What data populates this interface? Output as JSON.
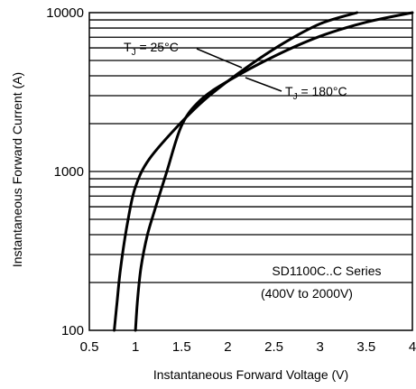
{
  "chart_data": {
    "type": "line",
    "title": "",
    "xlabel": "Instantaneous Forward Voltage (V)",
    "ylabel": "Instantaneous Forward Current (A)",
    "xlim": [
      0.5,
      4
    ],
    "ylim": [
      100,
      10000
    ],
    "y_scale": "log",
    "grid": "horizontal",
    "x_ticks": [
      "0.5",
      "1",
      "1.5",
      "2",
      "2.5",
      "3",
      "3.5",
      "4"
    ],
    "y_ticks": [
      "100",
      "1000",
      "10000"
    ],
    "series": [
      {
        "name": "TJ = 25°C",
        "label_main": "T",
        "label_sub": "J",
        "label_rest": " = 25°C",
        "points": [
          [
            1.0,
            100
          ],
          [
            1.02,
            150
          ],
          [
            1.06,
            250
          ],
          [
            1.13,
            400
          ],
          [
            1.22,
            600
          ],
          [
            1.34,
            1000
          ],
          [
            1.5,
            1950
          ],
          [
            1.7,
            2800
          ],
          [
            2.0,
            3700
          ],
          [
            2.5,
            5300
          ],
          [
            3.0,
            7100
          ],
          [
            3.5,
            8700
          ],
          [
            4.0,
            10000
          ]
        ]
      },
      {
        "name": "TJ = 180°C",
        "label_main": "T",
        "label_sub": "J",
        "label_rest": " = 180°C",
        "points": [
          [
            0.77,
            100
          ],
          [
            0.8,
            150
          ],
          [
            0.84,
            250
          ],
          [
            0.92,
            500
          ],
          [
            1.0,
            800
          ],
          [
            1.15,
            1200
          ],
          [
            1.5,
            2050
          ],
          [
            1.8,
            3000
          ],
          [
            2.2,
            4500
          ],
          [
            2.6,
            6400
          ],
          [
            3.0,
            8500
          ],
          [
            3.4,
            10000
          ]
        ]
      }
    ],
    "annotations": {
      "series_note_line1": "SD1100C..C Series",
      "series_note_line2": "(400V to 2000V)"
    }
  }
}
